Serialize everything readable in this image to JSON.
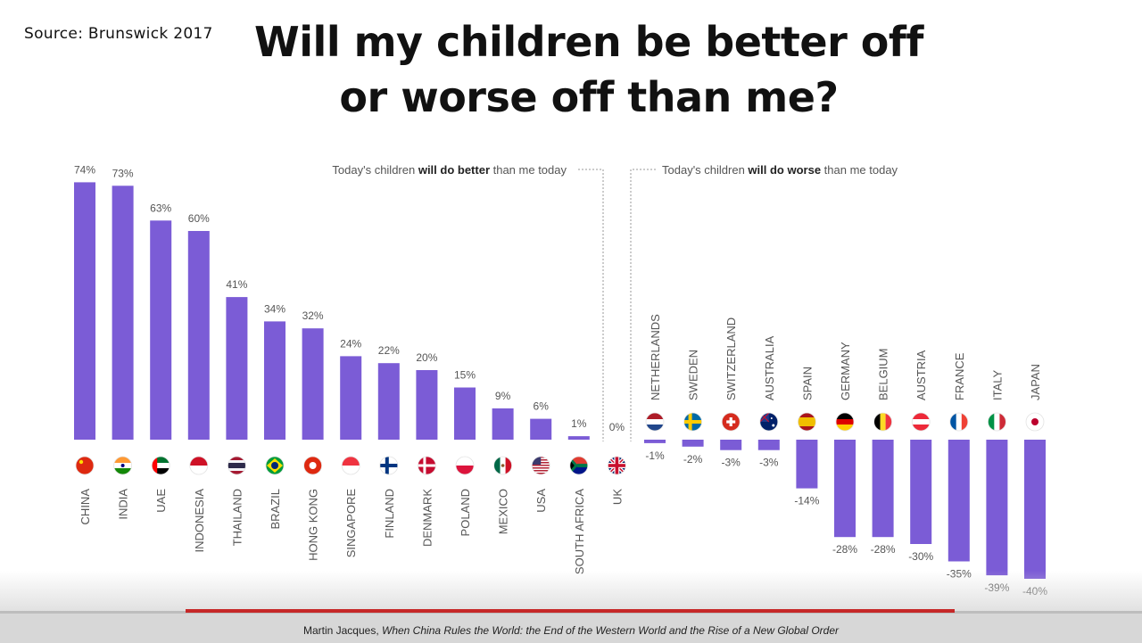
{
  "source": "Source: Brunswick 2017",
  "title_line1": "Will my children be better off",
  "title_line2": "or worse off than me?",
  "annotations": {
    "better_pre": "Today's children ",
    "better_bold": "will do better",
    "better_post": " than me today",
    "worse_pre": "Today's children ",
    "worse_bold": "will do worse",
    "worse_post": " than me today"
  },
  "caption": {
    "author": "Martin Jacques, ",
    "book": "When China Rules the World: the End of the Western World and the Rise of a New Global Order"
  },
  "colors": {
    "bar": "#7b5cd6",
    "text": "#555555",
    "progress": "#c62828"
  },
  "chart_data": {
    "type": "bar",
    "categories": [
      "CHINA",
      "INDIA",
      "UAE",
      "INDONESIA",
      "THAILAND",
      "BRAZIL",
      "HONG KONG",
      "SINGAPORE",
      "FINLAND",
      "DENMARK",
      "POLAND",
      "MEXICO",
      "USA",
      "SOUTH AFRICA",
      "UK",
      "NETHERLANDS",
      "SWEDEN",
      "SWITZERLAND",
      "AUSTRALIA",
      "SPAIN",
      "GERMANY",
      "BELGIUM",
      "AUSTRIA",
      "FRANCE",
      "ITALY",
      "JAPAN"
    ],
    "values": [
      74,
      73,
      63,
      60,
      41,
      34,
      32,
      24,
      22,
      20,
      15,
      9,
      6,
      1,
      0,
      -1,
      -2,
      -3,
      -3,
      -14,
      -28,
      -28,
      -30,
      -35,
      -39,
      -40
    ],
    "value_labels": [
      "74%",
      "73%",
      "63%",
      "60%",
      "41%",
      "34%",
      "32%",
      "24%",
      "22%",
      "20%",
      "15%",
      "9%",
      "6%",
      "1%",
      "0%",
      "-1%",
      "-2%",
      "-3%",
      "-3%",
      "-14%",
      "-28%",
      "-28%",
      "-30%",
      "-35%",
      "-39%",
      "-40%"
    ],
    "flags": [
      "china-flag",
      "india-flag",
      "uae-flag",
      "indonesia-flag",
      "thailand-flag",
      "brazil-flag",
      "hong-kong-flag",
      "singapore-flag",
      "finland-flag",
      "denmark-flag",
      "poland-flag",
      "mexico-flag",
      "usa-flag",
      "south-africa-flag",
      "uk-flag",
      "netherlands-flag",
      "sweden-flag",
      "switzerland-flag",
      "australia-flag",
      "spain-flag",
      "germany-flag",
      "belgium-flag",
      "austria-flag",
      "france-flag",
      "italy-flag",
      "japan-flag"
    ]
  }
}
